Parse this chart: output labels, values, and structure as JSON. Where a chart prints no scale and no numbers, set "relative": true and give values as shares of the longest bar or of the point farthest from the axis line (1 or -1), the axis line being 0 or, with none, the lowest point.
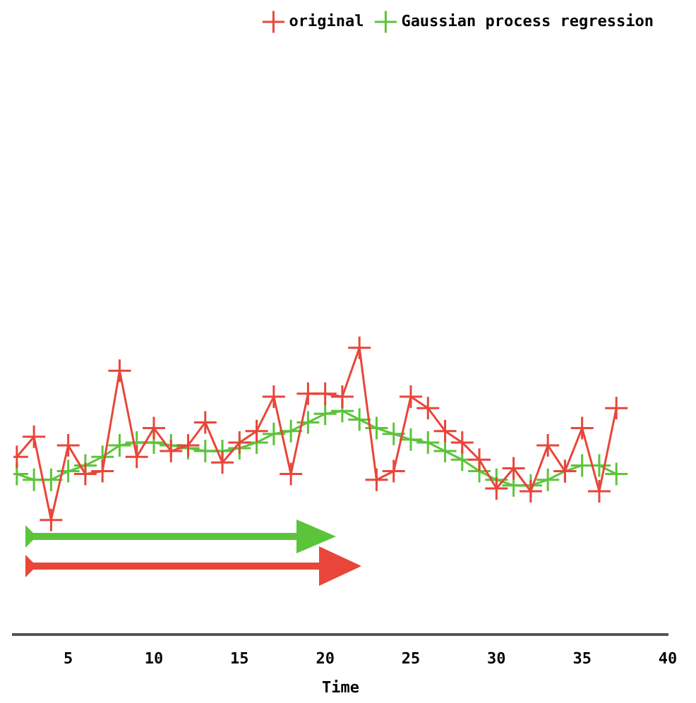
{
  "chart_data": {
    "type": "line",
    "xlabel": "Time",
    "relative": true,
    "x": [
      2,
      3,
      4,
      5,
      6,
      7,
      8,
      9,
      10,
      11,
      12,
      13,
      14,
      15,
      16,
      17,
      18,
      19,
      20,
      21,
      22,
      23,
      24,
      25,
      26,
      27,
      28,
      29,
      30,
      31,
      32,
      33,
      34,
      35,
      36,
      37
    ],
    "xlim": [
      1.8,
      40
    ],
    "xticks": [
      5,
      10,
      15,
      20,
      25,
      30,
      35,
      40
    ],
    "series": [
      {
        "name": "original",
        "color": "#e8463a",
        "values": [
          0.62,
          0.69,
          0.4,
          0.66,
          0.56,
          0.57,
          0.92,
          0.62,
          0.72,
          0.64,
          0.66,
          0.74,
          0.6,
          0.67,
          0.71,
          0.83,
          0.56,
          0.84,
          0.84,
          0.83,
          1.0,
          0.54,
          0.57,
          0.83,
          0.79,
          0.71,
          0.67,
          0.61,
          0.51,
          0.58,
          0.5,
          0.66,
          0.57,
          0.72,
          0.5,
          0.79
        ]
      },
      {
        "name": "Gaussian process regression",
        "color": "#5cc43a",
        "values": [
          0.56,
          0.54,
          0.54,
          0.57,
          0.59,
          0.62,
          0.66,
          0.67,
          0.67,
          0.66,
          0.65,
          0.64,
          0.64,
          0.65,
          0.67,
          0.7,
          0.71,
          0.74,
          0.77,
          0.78,
          0.75,
          0.72,
          0.7,
          0.68,
          0.67,
          0.64,
          0.61,
          0.57,
          0.54,
          0.52,
          0.52,
          0.54,
          0.57,
          0.59,
          0.59,
          0.56
        ]
      }
    ],
    "legend": "top right",
    "marker": "cross",
    "grid": false
  }
}
